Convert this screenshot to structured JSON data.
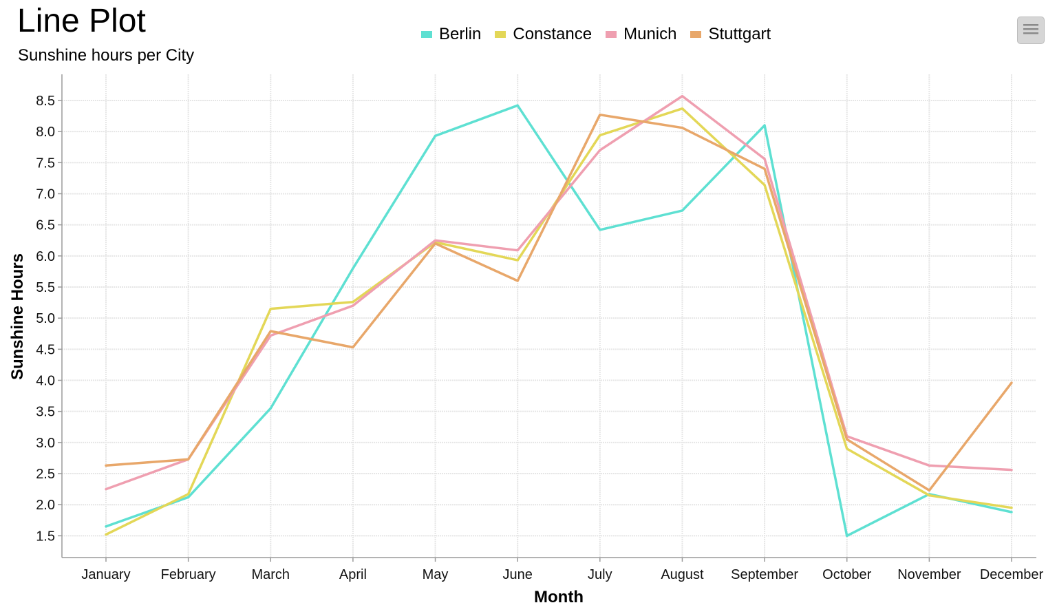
{
  "chart_data": {
    "type": "line",
    "title": "Line Plot",
    "subtitle": "Sunshine hours per City",
    "xlabel": "Month",
    "ylabel": "Sunshine Hours",
    "categories": [
      "January",
      "February",
      "March",
      "April",
      "May",
      "June",
      "July",
      "August",
      "September",
      "October",
      "November",
      "December"
    ],
    "yticks": [
      "1.5",
      "2.0",
      "2.5",
      "3.0",
      "3.5",
      "4.0",
      "4.5",
      "5.0",
      "5.5",
      "6.0",
      "6.5",
      "7.0",
      "7.5",
      "8.0",
      "8.5"
    ],
    "ylim": [
      1.15,
      8.92
    ],
    "grid": true,
    "legend_position": "top-center",
    "series": [
      {
        "name": "Berlin",
        "color": "#5ee0d2",
        "values": [
          1.65,
          2.12,
          3.55,
          5.8,
          7.93,
          8.42,
          6.42,
          6.73,
          8.1,
          1.5,
          2.17,
          1.88
        ]
      },
      {
        "name": "Constance",
        "color": "#e3d757",
        "values": [
          1.52,
          2.17,
          5.15,
          5.26,
          6.22,
          5.93,
          7.94,
          8.37,
          7.14,
          2.9,
          2.15,
          1.95
        ]
      },
      {
        "name": "Munich",
        "color": "#ef9fb0",
        "values": [
          2.25,
          2.73,
          4.72,
          5.2,
          6.25,
          6.09,
          7.7,
          8.57,
          7.56,
          3.1,
          2.63,
          2.56
        ]
      },
      {
        "name": "Stuttgart",
        "color": "#e8a76a",
        "values": [
          2.63,
          2.73,
          4.79,
          4.53,
          6.2,
          5.6,
          8.27,
          8.06,
          7.4,
          3.05,
          2.23,
          3.96
        ]
      }
    ]
  },
  "toolbar": {
    "menu_icon": "hamburger-menu-icon"
  }
}
